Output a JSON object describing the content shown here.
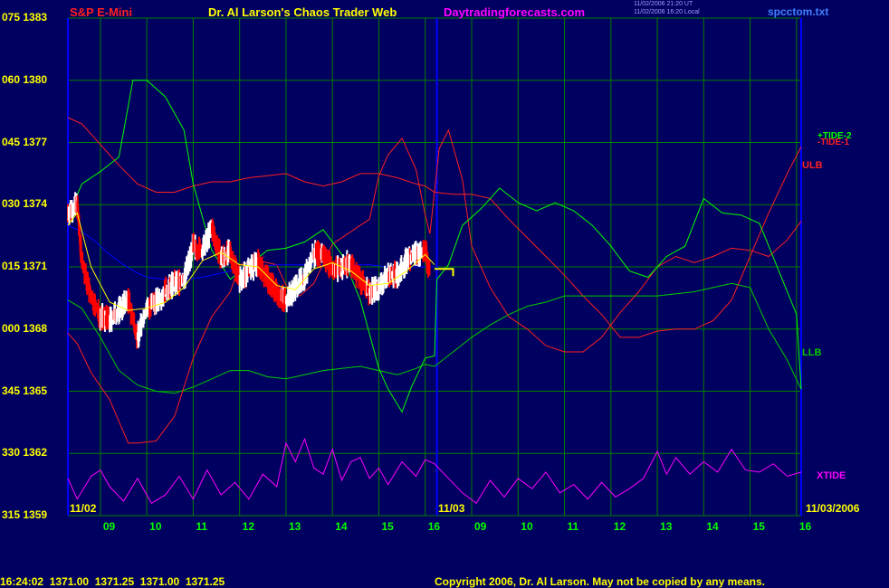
{
  "header": {
    "left_title": "S&P E-Mini",
    "center_title": "Dr. Al Larson's Chaos Trader Web",
    "site": "Daytradingforecasts.com",
    "time_line1": "11/02/2006 21:20 UT",
    "time_line2": "11/02/2006 16:20 Local",
    "file": "spcctom.txt"
  },
  "footer": {
    "quote": "16:24:02  1371.00  1371.25  1371.00  1371.25",
    "copyright": "Copyright 2006, Dr. Al Larson. May not be copied by any means."
  },
  "colors": {
    "background": "#000060",
    "grid": "#008000",
    "frame": "#0000ff",
    "up_bar": "#ffffff",
    "down_bar": "#ff0000",
    "ulb": "#ff2020",
    "llb": "#00cc00",
    "tide1": "#ff2020",
    "tide2": "#00ff00",
    "xtide": "#ff00ff",
    "average": "#ffff00",
    "slow_average": "#0000ff"
  },
  "chart_data": {
    "type": "line",
    "title": "S&P E-Mini",
    "ylim": [
      1359,
      1383
    ],
    "y_ticks": [
      {
        "osc": "075",
        "price": "1383"
      },
      {
        "osc": "060",
        "price": "1380"
      },
      {
        "osc": "045",
        "price": "1377"
      },
      {
        "osc": "030",
        "price": "1374"
      },
      {
        "osc": "015",
        "price": "1371"
      },
      {
        "osc": "000",
        "price": "1368"
      },
      {
        "osc": "345",
        "price": "1365"
      },
      {
        "osc": "330",
        "price": "1362"
      },
      {
        "osc": "315",
        "price": "1359"
      }
    ],
    "x_hours": [
      "09",
      "10",
      "11",
      "12",
      "13",
      "14",
      "15",
      "16",
      "09",
      "10",
      "11",
      "12",
      "13",
      "14",
      "15",
      "16"
    ],
    "date_labels": {
      "start": "11/02",
      "mid": "11/03",
      "end": "11/03/2006"
    },
    "series_labels": {
      "tide2": "+TIDE-2",
      "tide1": "-TIDE-1",
      "ulb": "ULB",
      "llb": "LLB",
      "xtide": "XTIDE"
    },
    "x_range": [
      8.3,
      24.1
    ],
    "prices": {
      "x": [
        8.3,
        8.5,
        8.6,
        8.8,
        9.0,
        9.2,
        9.4,
        9.6,
        9.8,
        10.0,
        10.2,
        10.4,
        10.6,
        10.8,
        11.0,
        11.2,
        11.4,
        11.6,
        11.8,
        12.0,
        12.2,
        12.4,
        12.6,
        12.8,
        13.0,
        13.2,
        13.4,
        13.6,
        13.8,
        14.0,
        14.2,
        14.4,
        14.6,
        14.8,
        15.0,
        15.2,
        15.4,
        15.6,
        15.8,
        16.0,
        16.1
      ],
      "y": [
        1373.6,
        1374.0,
        1371.3,
        1369.5,
        1368.6,
        1368.4,
        1368.9,
        1369.4,
        1367.6,
        1369.0,
        1369.3,
        1369.8,
        1370.2,
        1370.4,
        1372.0,
        1371.7,
        1372.9,
        1371.4,
        1371.7,
        1370.4,
        1370.8,
        1371.2,
        1370.4,
        1369.8,
        1369.4,
        1370.0,
        1370.5,
        1371.6,
        1371.6,
        1370.9,
        1371.0,
        1371.2,
        1370.3,
        1369.8,
        1370.0,
        1370.6,
        1370.6,
        1371.3,
        1371.6,
        1371.8,
        1370.7
      ]
    },
    "projection": {
      "x": [
        16.2,
        16.6
      ],
      "y": [
        1370.9,
        1370.9
      ]
    },
    "moving_average": {
      "x": [
        8.3,
        8.5,
        8.8,
        9.2,
        9.6,
        10.0,
        10.4,
        10.8,
        11.2,
        11.6,
        12.0,
        12.4,
        12.8,
        13.2,
        13.6,
        14.0,
        14.4,
        14.8,
        15.2,
        15.6,
        16.0,
        16.2
      ],
      "y": [
        1373.0,
        1373.6,
        1371.0,
        1369.3,
        1368.9,
        1369.0,
        1369.3,
        1370.0,
        1371.3,
        1371.7,
        1371.1,
        1371.0,
        1370.1,
        1369.9,
        1370.9,
        1371.2,
        1370.8,
        1370.1,
        1370.2,
        1370.8,
        1371.6,
        1371.1
      ]
    },
    "slow_average": {
      "x": [
        8.3,
        8.6,
        8.9,
        9.2,
        9.5,
        9.8,
        10.0,
        10.4,
        10.8,
        11.2,
        11.6,
        12.0,
        12.4,
        12.8,
        13.2,
        13.6,
        14.0,
        14.4,
        14.8,
        15.2,
        15.6,
        16.0,
        16.2
      ],
      "y": [
        1373.0,
        1372.7,
        1372.2,
        1371.6,
        1371.1,
        1370.7,
        1370.5,
        1370.4,
        1370.4,
        1370.5,
        1370.7,
        1370.9,
        1371.0,
        1371.1,
        1371.1,
        1371.1,
        1371.1,
        1371.1,
        1371.1,
        1371.0,
        1371.0,
        1371.0,
        1371.0
      ]
    },
    "ulb": {
      "x": [
        8.3,
        8.6,
        9.0,
        9.4,
        9.8,
        10.2,
        10.6,
        11.0,
        11.4,
        11.8,
        12.2,
        12.6,
        13.0,
        13.4,
        13.8,
        14.2,
        14.6,
        15.0,
        15.4,
        15.8,
        16.0,
        16.2,
        16.6,
        17.0,
        17.4,
        17.8,
        18.2,
        18.6,
        19.0,
        19.4,
        19.8,
        20.2,
        20.6,
        21.0,
        21.4,
        21.8,
        22.2,
        22.6,
        23.0,
        23.4,
        23.8,
        24.1
      ],
      "y": [
        1378.2,
        1377.9,
        1376.9,
        1375.9,
        1375.0,
        1374.6,
        1374.6,
        1374.9,
        1375.1,
        1375.1,
        1375.3,
        1375.4,
        1375.5,
        1375.1,
        1374.9,
        1375.1,
        1375.5,
        1375.5,
        1375.3,
        1375.0,
        1374.9,
        1374.6,
        1374.5,
        1374.5,
        1374.3,
        1373.3,
        1372.4,
        1371.5,
        1370.6,
        1369.6,
        1368.7,
        1367.6,
        1367.6,
        1367.9,
        1368.0,
        1368.0,
        1368.4,
        1369.4,
        1371.5,
        1373.6,
        1375.5,
        1376.8
      ]
    },
    "llb": {
      "x": [
        8.3,
        8.6,
        9.0,
        9.4,
        9.8,
        10.2,
        10.6,
        11.0,
        11.4,
        11.8,
        12.2,
        12.6,
        13.0,
        13.4,
        13.8,
        14.2,
        14.6,
        15.0,
        15.4,
        15.8,
        16.0,
        16.2,
        16.6,
        17.0,
        17.4,
        17.8,
        18.2,
        18.6,
        19.0,
        19.4,
        19.8,
        20.2,
        20.6,
        21.0,
        21.4,
        21.8,
        22.2,
        22.6,
        23.0,
        23.4,
        23.8,
        24.1
      ],
      "y": [
        1369.4,
        1369.0,
        1367.6,
        1366.0,
        1365.3,
        1365.0,
        1364.9,
        1365.2,
        1365.6,
        1366.0,
        1366.0,
        1365.7,
        1365.6,
        1365.8,
        1366.0,
        1366.1,
        1366.2,
        1366.0,
        1365.8,
        1366.1,
        1366.3,
        1366.2,
        1366.9,
        1367.6,
        1368.2,
        1368.7,
        1369.1,
        1369.3,
        1369.6,
        1369.6,
        1369.6,
        1369.6,
        1369.6,
        1369.6,
        1369.7,
        1369.8,
        1370.0,
        1370.2,
        1370.0,
        1368.0,
        1366.5,
        1365.1
      ]
    },
    "tide1": {
      "x": [
        8.3,
        8.5,
        8.8,
        9.2,
        9.6,
        9.8,
        10.2,
        10.6,
        11.0,
        11.4,
        11.8,
        12.0,
        12.4,
        12.8,
        13.0,
        13.3,
        13.6,
        14.0,
        14.4,
        14.8,
        15.0,
        15.2,
        15.5,
        15.8,
        16.0,
        16.1,
        16.3,
        16.5,
        16.8,
        17.0,
        17.4,
        17.8,
        18.2,
        18.6,
        19.0,
        19.4,
        19.8,
        20.2,
        20.6,
        21.0,
        21.4,
        21.8,
        22.2,
        22.6,
        23.0,
        23.4,
        23.8,
        24.1
      ],
      "y": [
        1367.8,
        1367.3,
        1365.9,
        1364.6,
        1362.5,
        1362.5,
        1362.6,
        1363.8,
        1366.6,
        1368.6,
        1369.8,
        1371.1,
        1371.3,
        1371.1,
        1370.1,
        1369.6,
        1370.2,
        1372.1,
        1372.7,
        1373.3,
        1375.4,
        1376.4,
        1377.2,
        1375.7,
        1373.5,
        1372.6,
        1376.7,
        1377.6,
        1375.2,
        1372.0,
        1370.0,
        1368.6,
        1368.0,
        1367.2,
        1366.9,
        1366.9,
        1367.6,
        1368.8,
        1369.8,
        1371.0,
        1371.5,
        1371.2,
        1371.5,
        1371.9,
        1371.8,
        1371.5,
        1372.3,
        1373.2
      ]
    },
    "tide2": {
      "x": [
        8.3,
        8.6,
        9.0,
        9.4,
        9.7,
        10.0,
        10.4,
        10.8,
        11.0,
        11.4,
        11.8,
        12.2,
        12.6,
        13.0,
        13.4,
        13.8,
        14.2,
        14.6,
        15.0,
        15.2,
        15.5,
        15.7,
        16.0,
        16.2,
        16.25,
        16.5,
        16.8,
        17.2,
        17.6,
        18.0,
        18.4,
        18.8,
        19.2,
        19.6,
        20.0,
        20.4,
        20.8,
        21.0,
        21.2,
        21.6,
        22.0,
        22.4,
        22.8,
        23.2,
        23.6,
        24.0,
        24.1
      ],
      "y": [
        1373.4,
        1375.0,
        1375.6,
        1376.3,
        1380.0,
        1380.0,
        1379.2,
        1377.6,
        1375.0,
        1371.8,
        1370.4,
        1371.1,
        1371.8,
        1371.9,
        1372.2,
        1372.8,
        1371.6,
        1369.4,
        1366.1,
        1365.1,
        1364.0,
        1365.2,
        1366.6,
        1366.7,
        1370.4,
        1371.1,
        1373.0,
        1373.8,
        1374.8,
        1374.1,
        1373.7,
        1374.1,
        1373.7,
        1373.0,
        1372.0,
        1370.8,
        1370.5,
        1371.0,
        1371.5,
        1372.0,
        1374.3,
        1373.6,
        1373.5,
        1373.1,
        1370.9,
        1368.7,
        1365.1
      ]
    },
    "xtide": {
      "x": [
        8.3,
        8.5,
        8.8,
        9.0,
        9.2,
        9.5,
        9.8,
        10.1,
        10.4,
        10.7,
        11.0,
        11.3,
        11.6,
        11.9,
        12.2,
        12.5,
        12.8,
        13.0,
        13.2,
        13.4,
        13.6,
        13.8,
        14.0,
        14.2,
        14.4,
        14.6,
        14.8,
        15.0,
        15.2,
        15.5,
        15.8,
        16.0,
        16.2,
        16.5,
        16.8,
        17.1,
        17.4,
        17.7,
        18.0,
        18.3,
        18.6,
        18.9,
        19.2,
        19.5,
        19.8,
        20.1,
        20.4,
        20.7,
        21.0,
        21.2,
        21.4,
        21.7,
        22.0,
        22.3,
        22.6,
        22.9,
        23.2,
        23.5,
        23.8,
        24.1
      ],
      "y": [
        1360.8,
        1359.8,
        1360.9,
        1361.2,
        1360.4,
        1359.7,
        1360.8,
        1359.6,
        1360.0,
        1360.9,
        1359.8,
        1361.2,
        1360.0,
        1360.6,
        1359.8,
        1361.0,
        1360.4,
        1362.5,
        1361.6,
        1362.7,
        1361.3,
        1361.0,
        1362.2,
        1360.7,
        1361.6,
        1361.8,
        1360.8,
        1361.3,
        1360.5,
        1361.6,
        1360.9,
        1361.7,
        1361.5,
        1360.8,
        1360.1,
        1359.6,
        1360.7,
        1359.9,
        1360.8,
        1360.3,
        1361.1,
        1360.1,
        1360.5,
        1359.8,
        1360.6,
        1359.9,
        1360.3,
        1360.8,
        1362.1,
        1361.0,
        1361.8,
        1361.0,
        1361.6,
        1361.1,
        1362.2,
        1361.2,
        1361.1,
        1361.5,
        1360.9,
        1361.1
      ]
    }
  }
}
